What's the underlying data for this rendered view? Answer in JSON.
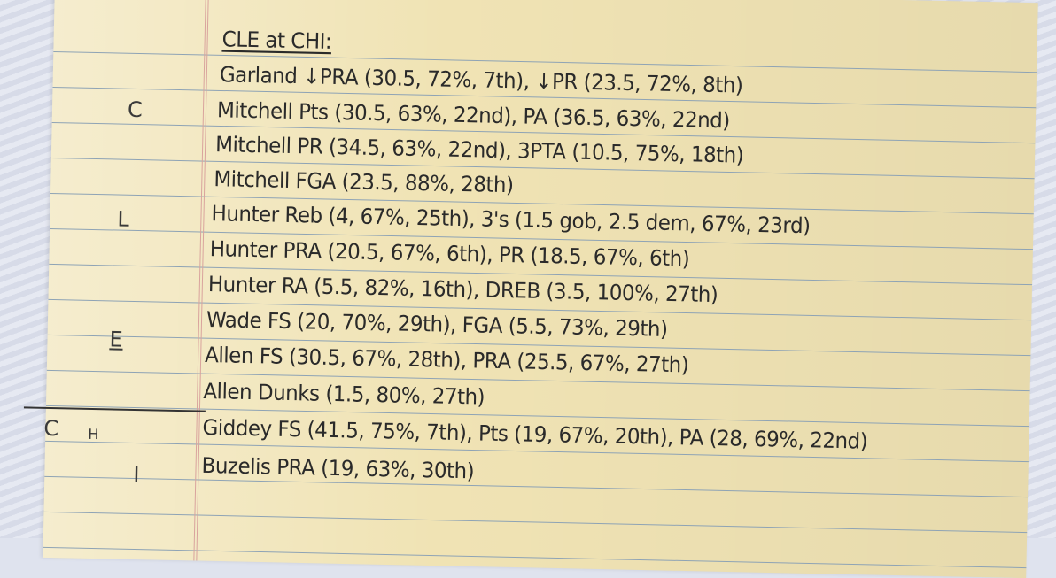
{
  "notes": {
    "title": "CLE at CHI:",
    "lines": [
      "Garland ↓PRA (30.5, 72%, 7th), ↓PR (23.5, 72%, 8th)",
      "Mitchell Pts (30.5, 63%, 22nd), PA (36.5, 63%, 22nd)",
      "Mitchell PR (34.5, 63%, 22nd), 3PTA (10.5, 75%, 18th)",
      "Mitchell FGA (23.5, 88%, 28th)",
      "Hunter Reb (4, 67%, 25th), 3's (1.5 gob, 2.5 dem, 67%, 23rd)",
      "Hunter PRA (20.5, 67%, 6th), PR (18.5, 67%, 6th)",
      "Hunter RA (5.5, 82%, 16th), DREB (3.5, 100%, 27th)",
      "Wade FS (20, 70%, 29th), FGA (5.5, 73%, 29th)",
      "Allen FS (30.5, 67%, 28th), PRA (25.5, 67%, 27th)",
      "Allen Dunks (1.5, 80%, 27th)",
      "Giddey FS (41.5, 75%, 7th), Pts (19, 67%, 20th), PA (28, 69%, 22nd)",
      "Buzelis PRA (19, 63%, 30th)"
    ],
    "margin_letters": [
      "C",
      "L",
      "E",
      "C",
      "H",
      "I"
    ]
  }
}
